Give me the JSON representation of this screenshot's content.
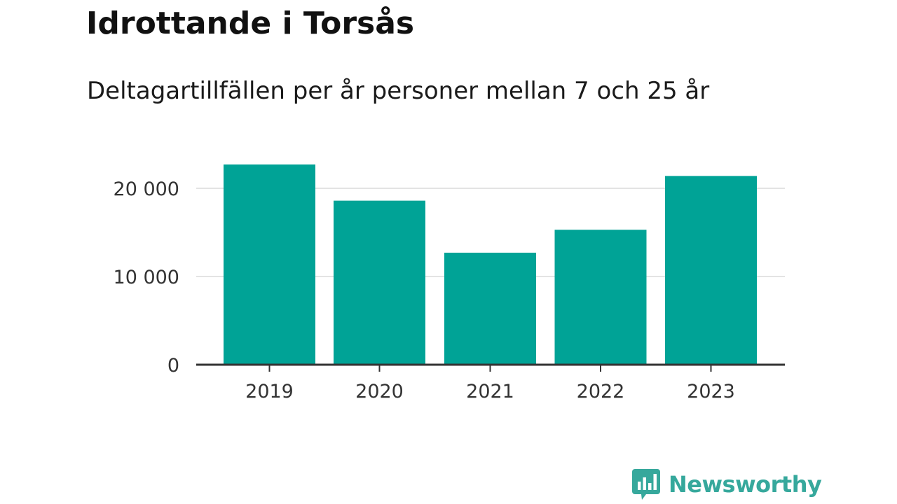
{
  "title": "Idrottande i Torsås",
  "subtitle": "Deltagartillfällen per år personer mellan 7 och 25 år",
  "brand": {
    "name": "Newsworthy",
    "color": "#36a89c",
    "icon": "bar-chart-bubble-icon"
  },
  "colors": {
    "bar": "#00a396",
    "gridline": "#e3e3e3",
    "axis": "#333333"
  },
  "chart_data": {
    "type": "bar",
    "title": "Idrottande i Torsås",
    "subtitle": "Deltagartillfällen per år personer mellan 7 och 25 år",
    "xlabel": "",
    "ylabel": "",
    "categories": [
      "2019",
      "2020",
      "2021",
      "2022",
      "2023"
    ],
    "values": [
      22700,
      18600,
      12700,
      15300,
      21400
    ],
    "ylim": [
      0,
      25000
    ],
    "yticks": [
      0,
      10000,
      20000
    ],
    "ytick_labels": [
      "0",
      "10 000",
      "20 000"
    ],
    "grid": true,
    "legend": "none"
  }
}
